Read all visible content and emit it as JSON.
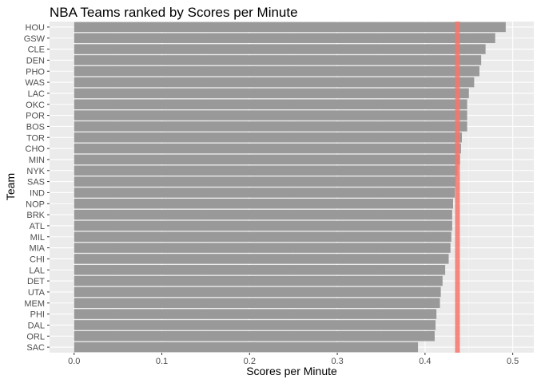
{
  "chart_data": {
    "type": "bar",
    "orientation": "horizontal",
    "title": "NBA Teams ranked by Scores per Minute",
    "xlabel": "Scores per Minute",
    "ylabel": "Team",
    "xlim": [
      -0.028,
      0.524
    ],
    "x_ticks": [
      "0.0",
      "0.1",
      "0.2",
      "0.3",
      "0.4",
      "0.5"
    ],
    "x_tick_values": [
      0.0,
      0.1,
      0.2,
      0.3,
      0.4,
      0.5
    ],
    "categories": [
      "HOU",
      "GSW",
      "CLE",
      "DEN",
      "PHO",
      "WAS",
      "LAC",
      "OKC",
      "POR",
      "BOS",
      "TOR",
      "CHO",
      "MIN",
      "NYK",
      "SAS",
      "IND",
      "NOP",
      "BRK",
      "ATL",
      "MIL",
      "MIA",
      "CHI",
      "LAL",
      "DET",
      "UTA",
      "MEM",
      "PHI",
      "DAL",
      "ORL",
      "SAC"
    ],
    "values": [
      0.492,
      0.48,
      0.469,
      0.464,
      0.462,
      0.456,
      0.45,
      0.448,
      0.448,
      0.448,
      0.442,
      0.441,
      0.44,
      0.437,
      0.435,
      0.434,
      0.432,
      0.431,
      0.431,
      0.43,
      0.429,
      0.427,
      0.423,
      0.42,
      0.418,
      0.417,
      0.413,
      0.412,
      0.411,
      0.392
    ],
    "reference_line": {
      "value": 0.437,
      "color": "#f8766d"
    },
    "bar_color": "#999999",
    "panel_background": "#ebebeb",
    "grid": true,
    "legend": "none"
  }
}
